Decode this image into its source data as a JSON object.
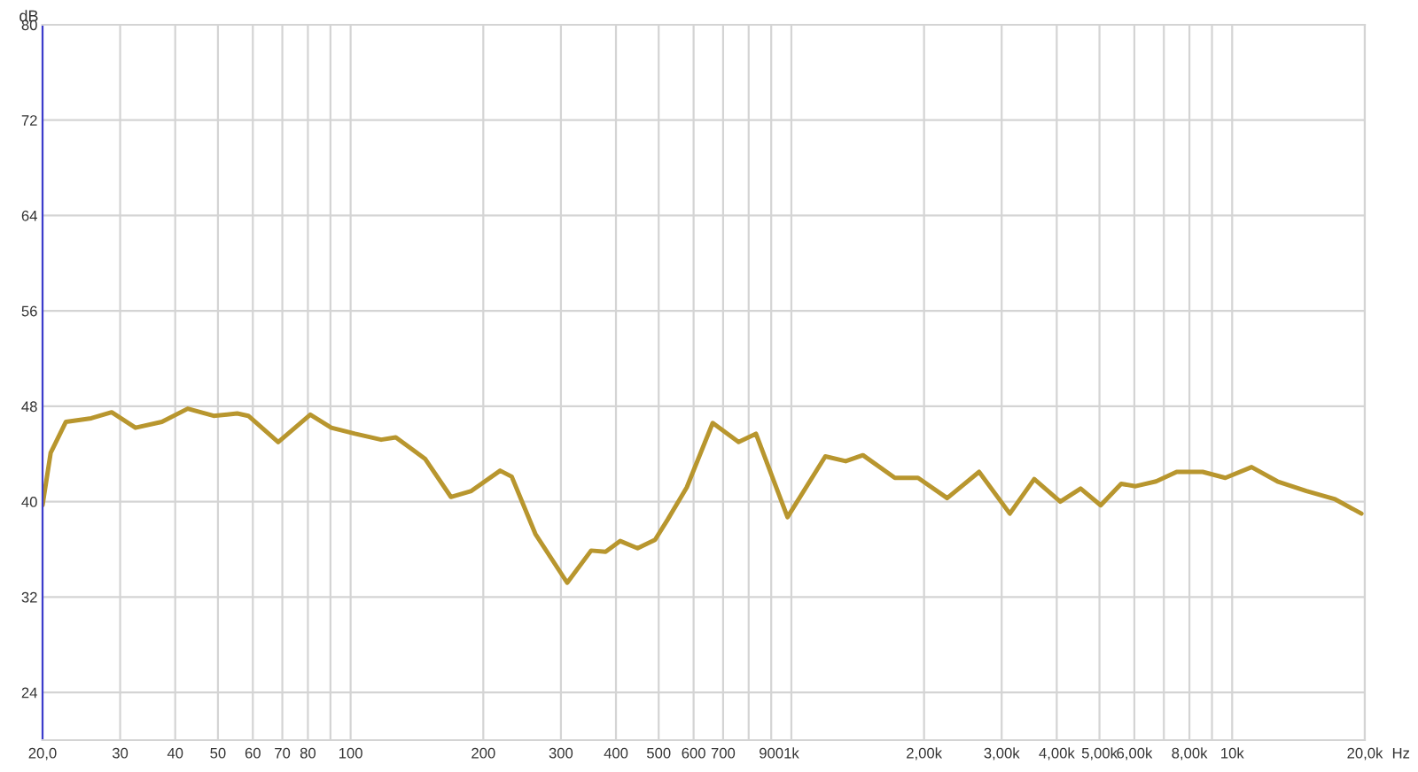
{
  "chart_data": {
    "type": "line",
    "ylabel": "dB",
    "xlabel": "Hz",
    "x": [
      20,
      20.87,
      22.6,
      25.8,
      28.7,
      32.5,
      37.3,
      42.7,
      48.9,
      55.3,
      58.6,
      68.5,
      81.0,
      90.4,
      102.3,
      117.3,
      126.6,
      147.5,
      168.9,
      187.9,
      218.4,
      232,
      262.5,
      310,
      351.3,
      378.8,
      409,
      447.8,
      490.5,
      524,
      579,
      663,
      759,
      831,
      980,
      1194,
      1328,
      1453,
      1717,
      1938,
      2257,
      2666,
      3130,
      3556,
      4074,
      4532,
      5032,
      5600,
      6038,
      6723,
      7484,
      8574,
      9650,
      11070,
      12670,
      14740,
      17130,
      19650
    ],
    "series": [
      {
        "color": "#b8962e",
        "values": [
          39.7,
          44.1,
          46.7,
          47.0,
          47.5,
          46.2,
          46.7,
          47.8,
          47.2,
          47.4,
          47.2,
          45.0,
          47.3,
          46.2,
          45.7,
          45.2,
          45.4,
          43.6,
          40.4,
          40.9,
          42.6,
          42.1,
          37.3,
          33.2,
          35.9,
          35.8,
          36.7,
          36.1,
          36.8,
          38.5,
          41.2,
          46.6,
          45.0,
          45.7,
          38.7,
          43.8,
          43.4,
          43.9,
          42.0,
          42.0,
          40.3,
          42.5,
          39.0,
          41.9,
          40.0,
          41.1,
          39.7,
          41.5,
          41.3,
          41.7,
          42.5,
          42.5,
          42.0,
          42.9,
          41.7,
          40.9,
          40.2,
          39.0
        ]
      }
    ],
    "log": "x",
    "xlim": [
      20,
      20000
    ],
    "ylim": [
      20,
      80
    ],
    "xticks": [
      {
        "value": 20,
        "label": "20,0"
      },
      30,
      40,
      50,
      60,
      70,
      80,
      {
        "value": 90,
        "label": null
      },
      100,
      200,
      300,
      400,
      500,
      600,
      700,
      {
        "value": 800,
        "label": null
      },
      900,
      {
        "value": 1000,
        "label": "1k"
      },
      {
        "value": 2000,
        "label": "2,00k"
      },
      {
        "value": 3000,
        "label": "3,00k"
      },
      {
        "value": 4000,
        "label": "4,00k"
      },
      {
        "value": 5000,
        "label": "5,00k"
      },
      {
        "value": 6000,
        "label": "6,00k"
      },
      {
        "value": 7000,
        "label": null
      },
      {
        "value": 8000,
        "label": "8,00k"
      },
      {
        "value": 9000,
        "label": null
      },
      {
        "value": 10000,
        "label": "10k"
      },
      {
        "value": 20000,
        "label": "20,0k"
      }
    ],
    "yticks": [
      24,
      32,
      40,
      48,
      56,
      64,
      72,
      80
    ],
    "grid": true,
    "legend": false,
    "marker": "none",
    "line_style": "solid"
  }
}
